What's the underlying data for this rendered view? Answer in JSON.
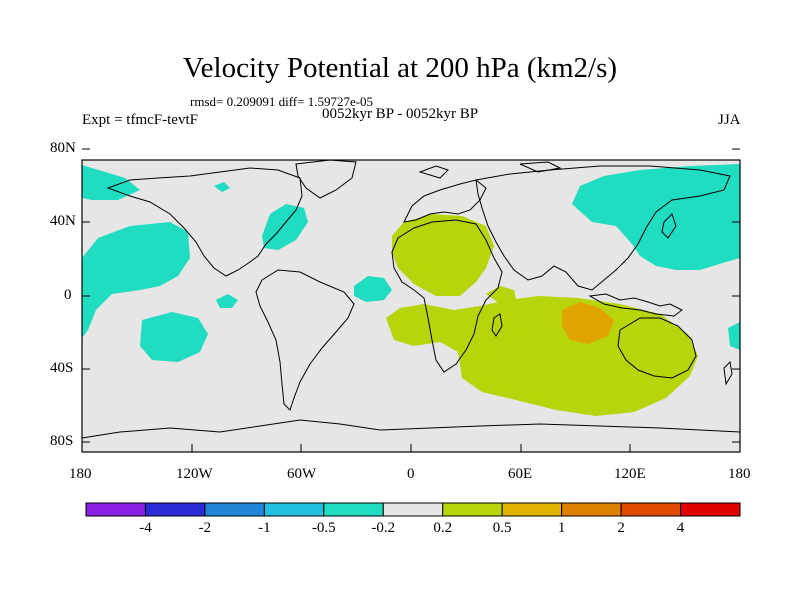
{
  "title": "Velocity Potential at 200 hPa (km2/s)",
  "stats": "rmsd= 0.209091 diff= 1.59727e-05",
  "subtitle": "0052kyr BP - 0052kyr BP",
  "experiment": "Expt = tfmcF-tevtF",
  "season": "JJA",
  "lat_labels": [
    "80N",
    "40N",
    "0",
    "40S",
    "80S"
  ],
  "lon_labels": [
    "180",
    "120W",
    "60W",
    "0",
    "60E",
    "120E",
    "180"
  ],
  "colorbar": {
    "labels": [
      "-4",
      "-2",
      "-1",
      "-0.5",
      "-0.2",
      "0.2",
      "0.5",
      "1",
      "2",
      "4"
    ],
    "colors": [
      "#8a1fe6",
      "#2a2ad6",
      "#1f86d8",
      "#1fc0e0",
      "#20dcc0",
      "#e6e6e6",
      "#b8d40a",
      "#e0b400",
      "#e08000",
      "#e04a00",
      "#e00000"
    ]
  },
  "field_colors": {
    "neutral": "#e6e6e6",
    "weak_negative": "#20dcc0",
    "weak_positive": "#b8d40a",
    "moderate_positive": "#e0a400"
  }
}
